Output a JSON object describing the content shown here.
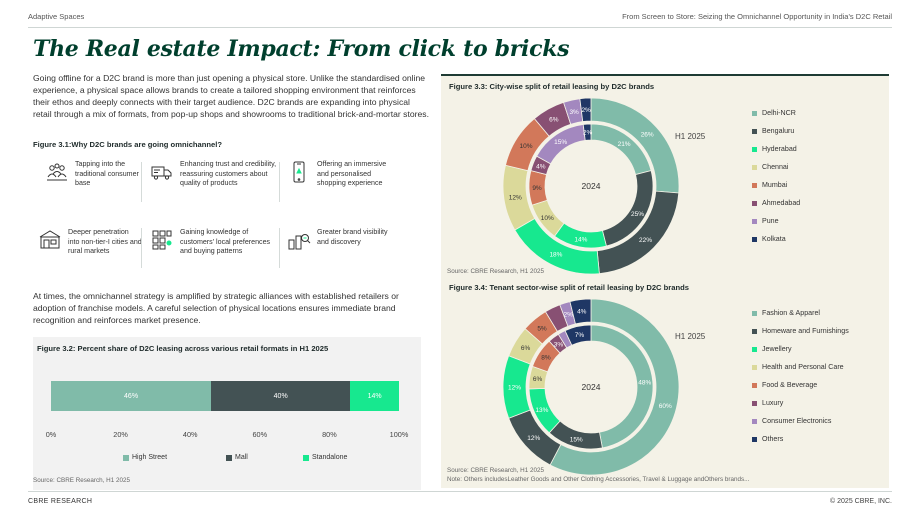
{
  "header": {
    "left": "Adaptive Spaces",
    "right": "From Screen to Store: Seizing the Omnichannel Opportunity in India's D2C Retail"
  },
  "title": "The Real estate Impact: From click to bricks",
  "intro": "Going offline for a D2C brand is more than just opening a physical store. Unlike the standardised online experience, a physical space allows brands to create a tailored shopping environment that reinforces their ethos and deeply connects with their target audience. D2C brands are expanding into physical retail through a mix of formats, from pop-up shops and showrooms to traditional brick-and-mortar stores.",
  "figure31": {
    "title": "Figure 3.1:Why D2C brands are going omnichannel?",
    "reasons": [
      {
        "icon": "consumers-icon",
        "text": "Tapping into the traditional consumer base"
      },
      {
        "icon": "delivery-truck-icon",
        "text": "Enhancing trust and credibility, reassuring customers about quality of products"
      },
      {
        "icon": "smartphone-icon",
        "text": "Offering an immersive and personalised shopping experience"
      },
      {
        "icon": "storefront-icon",
        "text": "Deeper penetration into non-tier-I cities and rural markets"
      },
      {
        "icon": "grid-knowledge-icon",
        "text": "Gaining knowledge of customers' local preferences and buying patterns"
      },
      {
        "icon": "brand-visibility-icon",
        "text": "Greater brand visibility and discovery"
      }
    ]
  },
  "para2": "At times, the omnichannel strategy is amplified by strategic alliances with established retailers or adoption of franchise models. A careful selection of physical locations ensures immediate brand recognition and reinforces market presence.",
  "chart_data": [
    {
      "type": "bar",
      "orientation": "horizontal-stacked",
      "title": "Figure 3.2: Percent share of D2C leasing across various retail formats in H1 2025",
      "categories": [
        "H1 2025"
      ],
      "series": [
        {
          "name": "High Street",
          "values": [
            46
          ],
          "label": "46%",
          "color": "#80bba9"
        },
        {
          "name": "Mall",
          "values": [
            40
          ],
          "label": "40%",
          "color": "#435254"
        },
        {
          "name": "Standalone",
          "values": [
            14
          ],
          "label": "14%",
          "color": "#17e88f"
        }
      ],
      "xlim": [
        0,
        100
      ],
      "ticks": [
        "0%",
        "20%",
        "40%",
        "60%",
        "80%",
        "100%"
      ],
      "legend": "bottom",
      "source": "Source: CBRE Research, H1 2025"
    },
    {
      "type": "pie",
      "variant": "double-donut",
      "title": "Figure 3.3: City-wise split of retail leasing by D2C brands",
      "rings": [
        {
          "name": "2024",
          "values": [
            21,
            25,
            14,
            10,
            9,
            4,
            15,
            2
          ],
          "labels": [
            "21%",
            "25%",
            "14%",
            "10%",
            "9%",
            "4%",
            "15%",
            "2%"
          ]
        },
        {
          "name": "H1 2025",
          "values": [
            26,
            22,
            18,
            12,
            10,
            6,
            3,
            2
          ],
          "labels": [
            "26%",
            "22%",
            "18%",
            "12%",
            "10%",
            "6%",
            "3%",
            "2%"
          ]
        }
      ],
      "categories": [
        "Delhi-NCR",
        "Bengaluru",
        "Hyderabad",
        "Chennai",
        "Mumbai",
        "Ahmedabad",
        "Pune",
        "Kolkata"
      ],
      "colors": [
        "#80bba9",
        "#435254",
        "#17e88f",
        "#dbd99a",
        "#d2785a",
        "#885073",
        "#a388bf",
        "#1f3765"
      ],
      "legend": "right",
      "source": "Source: CBRE Research, H1 2025"
    },
    {
      "type": "pie",
      "variant": "double-donut",
      "title": "Figure 3.4: Tenant sector-wise split of retail leasing by D2C brands",
      "rings": [
        {
          "name": "2024",
          "values": [
            48,
            15,
            13,
            6,
            8,
            3,
            2,
            7
          ],
          "labels": [
            "48%",
            "15%",
            "13%",
            "6%",
            "8%",
            "3%",
            "",
            "7%"
          ]
        },
        {
          "name": "H1 2025",
          "values": [
            60,
            12,
            12,
            6,
            5,
            3,
            2,
            4
          ],
          "labels": [
            "60%",
            "12%",
            "12%",
            "6%",
            "5%",
            "",
            "2%",
            "4%"
          ]
        }
      ],
      "categories": [
        "Fashion & Apparel",
        "Homeware and Furnishings",
        "Jewellery",
        "Health and Personal Care",
        "Food & Beverage",
        "Luxury",
        "Consumer Electronics",
        "Others"
      ],
      "colors": [
        "#80bba9",
        "#435254",
        "#17e88f",
        "#dbd99a",
        "#d2785a",
        "#885073",
        "#a388bf",
        "#1f3765"
      ],
      "legend": "right",
      "source": "Source: CBRE Research, H1 2025",
      "note": "Note: Others includesLeather Goods and Other Clothing Accessories, Travel & Luggage andOthers brands..."
    }
  ],
  "footer": {
    "left": "CBRE RESEARCH",
    "right": "© 2025 CBRE, INC."
  }
}
